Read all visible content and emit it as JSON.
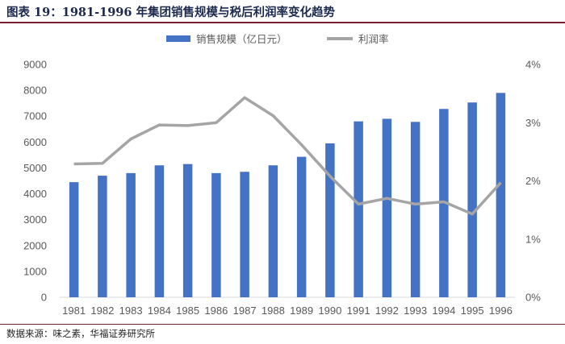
{
  "header": {
    "title": "图表 19：1981-1996 年集团销售规模与税后利润率变化趋势"
  },
  "footer": {
    "source": "数据来源：味之素，华福证券研究所"
  },
  "colors": {
    "bar": "#4472c4",
    "line": "#a5a5a5",
    "rule": "#7a1f2b"
  },
  "chart_data": {
    "type": "bar",
    "categories": [
      "1981",
      "1982",
      "1983",
      "1984",
      "1985",
      "1986",
      "1987",
      "1988",
      "1989",
      "1990",
      "1991",
      "1992",
      "1993",
      "1994",
      "1995",
      "1996"
    ],
    "series": [
      {
        "name": "销售规模（亿日元）",
        "type": "bar",
        "axis": "left",
        "values": [
          4450,
          4700,
          4800,
          5100,
          5150,
          4800,
          4850,
          5100,
          5430,
          5950,
          6800,
          6900,
          6780,
          7280,
          7530,
          7900
        ]
      },
      {
        "name": "利润率",
        "type": "line",
        "axis": "right",
        "values": [
          2.29,
          2.3,
          2.72,
          2.96,
          2.95,
          3.0,
          3.43,
          3.12,
          2.62,
          2.08,
          1.6,
          1.7,
          1.6,
          1.64,
          1.43,
          1.97
        ]
      }
    ],
    "y_left": {
      "ylim": [
        0,
        9000
      ],
      "ticks": [
        "0",
        "1000",
        "2000",
        "3000",
        "4000",
        "5000",
        "6000",
        "7000",
        "8000",
        "9000"
      ]
    },
    "y_right": {
      "ylim": [
        0,
        4
      ],
      "ticks": [
        "0%",
        "1%",
        "2%",
        "3%",
        "4%"
      ]
    },
    "legend": "top-center",
    "grid": false
  }
}
